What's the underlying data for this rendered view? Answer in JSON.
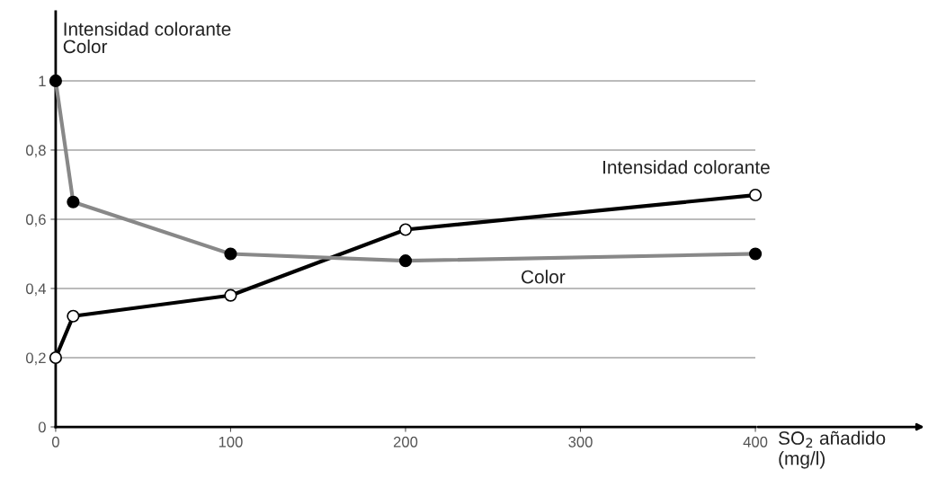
{
  "chart_data": {
    "type": "line",
    "ylabel": "Intensidad colorante\nColor",
    "xlabel": "SO$_{2}$ añadido\n(mg/l)",
    "xlim": [
      0,
      400
    ],
    "xticks": [
      0,
      100,
      200,
      300,
      400
    ],
    "ylim": [
      0,
      1.2
    ],
    "yticks": [
      0,
      {
        "value": 0.2,
        "label": "0,2"
      },
      {
        "value": 0.4,
        "label": "0,4"
      },
      {
        "value": 0.6,
        "label": "0,6"
      },
      {
        "value": 0.8,
        "label": "0,8"
      },
      1
    ],
    "grid": "y",
    "marker": "circle",
    "line_style": "solid",
    "series": [
      {
        "name": "Intensidad colorante",
        "color": "#000000",
        "x": [
          0,
          10,
          100,
          200,
          400
        ],
        "values": [
          0.2,
          0.32,
          0.38,
          0.57,
          0.67
        ]
      },
      {
        "name": "Color",
        "color": "#888888",
        "x": [
          0,
          10,
          100,
          200,
          400
        ],
        "values": [
          1.0,
          0.65,
          0.5,
          0.48,
          0.5
        ]
      }
    ]
  }
}
